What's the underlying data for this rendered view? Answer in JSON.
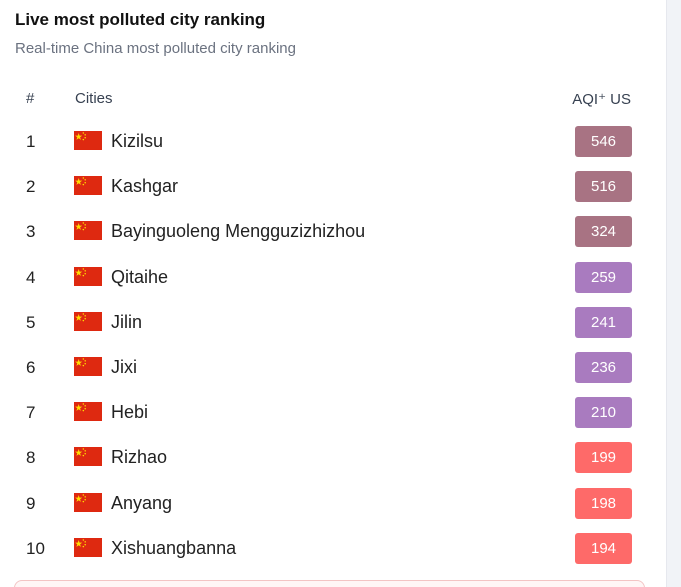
{
  "header": {
    "title": "Live most polluted city ranking",
    "subtitle": "Real-time China most polluted city ranking"
  },
  "table": {
    "columns": {
      "rank": "#",
      "city": "Cities",
      "aqi": "AQI⁺ US"
    },
    "rows": [
      {
        "rank": "1",
        "city": "Kizilsu",
        "aqi": "546",
        "color": "#a87383",
        "flag_icon": "china-flag-icon"
      },
      {
        "rank": "2",
        "city": "Kashgar",
        "aqi": "516",
        "color": "#a87383",
        "flag_icon": "china-flag-icon"
      },
      {
        "rank": "3",
        "city": "Bayinguoleng Mengguzizhizhou",
        "aqi": "324",
        "color": "#a87383",
        "flag_icon": "china-flag-icon"
      },
      {
        "rank": "4",
        "city": "Qitaihe",
        "aqi": "259",
        "color": "#a97bbf",
        "flag_icon": "china-flag-icon"
      },
      {
        "rank": "5",
        "city": "Jilin",
        "aqi": "241",
        "color": "#a97bbf",
        "flag_icon": "china-flag-icon"
      },
      {
        "rank": "6",
        "city": "Jixi",
        "aqi": "236",
        "color": "#a97bbf",
        "flag_icon": "china-flag-icon"
      },
      {
        "rank": "7",
        "city": "Hebi",
        "aqi": "210",
        "color": "#a97bbf",
        "flag_icon": "china-flag-icon"
      },
      {
        "rank": "8",
        "city": "Rizhao",
        "aqi": "199",
        "color": "#fe6a69",
        "flag_icon": "china-flag-icon"
      },
      {
        "rank": "9",
        "city": "Anyang",
        "aqi": "198",
        "color": "#fe6a69",
        "flag_icon": "china-flag-icon"
      },
      {
        "rank": "10",
        "city": "Xishuangbanna",
        "aqi": "194",
        "color": "#fe6a69",
        "flag_icon": "china-flag-icon"
      }
    ]
  }
}
